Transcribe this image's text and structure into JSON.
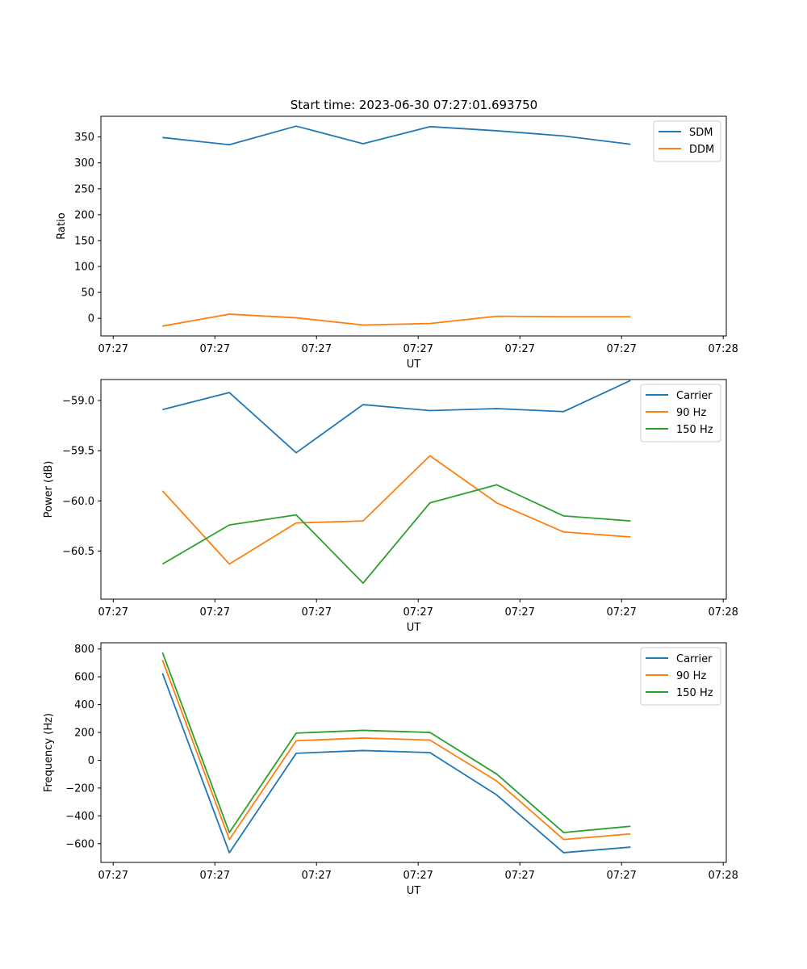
{
  "title": "Start time: 2023-06-30 07:27:01.693750",
  "colors": {
    "blue": "#1f77b4",
    "orange": "#ff7f0e",
    "green": "#2ca02c"
  },
  "chart_data": [
    {
      "type": "line",
      "ylabel": "Ratio",
      "xlabel": "UT",
      "x_tick_labels": [
        "07:27",
        "07:27",
        "07:27",
        "07:27",
        "07:27",
        "07:27",
        "07:28"
      ],
      "x_ticks": [
        -0.15,
        1.5,
        3.15,
        4.8,
        6.45,
        8.1,
        9.75
      ],
      "xlim": [
        -0.35,
        9.8
      ],
      "x": [
        0.65,
        1.735,
        2.82,
        3.905,
        4.99,
        6.075,
        7.16,
        8.245
      ],
      "ylim": [
        -34,
        390
      ],
      "y_ticks": [
        0,
        50,
        100,
        150,
        200,
        250,
        300,
        350
      ],
      "legend_location": "top-right",
      "series": [
        {
          "name": "SDM",
          "color": "#1f77b4",
          "values": [
            349,
            335,
            371,
            337,
            370,
            362,
            352,
            336
          ]
        },
        {
          "name": "DDM",
          "color": "#ff7f0e",
          "values": [
            -15,
            8,
            1,
            -13,
            -10,
            4,
            3,
            3
          ]
        }
      ]
    },
    {
      "type": "line",
      "ylabel": "Power (dB)",
      "xlabel": "UT",
      "x_tick_labels": [
        "07:27",
        "07:27",
        "07:27",
        "07:27",
        "07:27",
        "07:27",
        "07:28"
      ],
      "x_ticks": [
        -0.15,
        1.5,
        3.15,
        4.8,
        6.45,
        8.1,
        9.75
      ],
      "xlim": [
        -0.35,
        9.8
      ],
      "x": [
        0.65,
        1.735,
        2.82,
        3.905,
        4.99,
        6.075,
        7.16,
        8.245
      ],
      "ylim": [
        -60.98,
        -58.79
      ],
      "y_ticks": [
        -60.5,
        -60.0,
        -59.5,
        -59.0
      ],
      "y_tick_labels": [
        "−60.5",
        "−60.0",
        "−59.5",
        "−59.0"
      ],
      "legend_location": "top-right",
      "series": [
        {
          "name": "Carrier",
          "color": "#1f77b4",
          "values": [
            -59.09,
            -58.92,
            -59.52,
            -59.04,
            -59.1,
            -59.08,
            -59.11,
            -58.8
          ]
        },
        {
          "name": "90 Hz",
          "color": "#ff7f0e",
          "values": [
            -59.9,
            -60.63,
            -60.22,
            -60.2,
            -59.55,
            -60.02,
            -60.31,
            -60.36
          ]
        },
        {
          "name": "150 Hz",
          "color": "#2ca02c",
          "values": [
            -60.63,
            -60.24,
            -60.14,
            -60.82,
            -60.02,
            -59.84,
            -60.15,
            -60.2
          ]
        }
      ]
    },
    {
      "type": "line",
      "ylabel": "Frequency (Hz)",
      "xlabel": "UT",
      "x_tick_labels": [
        "07:27",
        "07:27",
        "07:27",
        "07:27",
        "07:27",
        "07:27",
        "07:28"
      ],
      "x_ticks": [
        -0.15,
        1.5,
        3.15,
        4.8,
        6.45,
        8.1,
        9.75
      ],
      "xlim": [
        -0.35,
        9.8
      ],
      "x": [
        0.65,
        1.735,
        2.82,
        3.905,
        4.99,
        6.075,
        7.16,
        8.245
      ],
      "ylim": [
        -735,
        845
      ],
      "y_ticks": [
        -600,
        -400,
        -200,
        0,
        200,
        400,
        600,
        800
      ],
      "y_tick_labels": [
        "−600",
        "−400",
        "−200",
        "0",
        "200",
        "400",
        "600",
        "800"
      ],
      "legend_location": "top-right",
      "series": [
        {
          "name": "Carrier",
          "color": "#1f77b4",
          "values": [
            625,
            -665,
            50,
            70,
            55,
            -250,
            -665,
            -625
          ]
        },
        {
          "name": "90 Hz",
          "color": "#ff7f0e",
          "values": [
            720,
            -570,
            140,
            160,
            145,
            -150,
            -570,
            -530
          ]
        },
        {
          "name": "150 Hz",
          "color": "#2ca02c",
          "values": [
            775,
            -520,
            195,
            215,
            200,
            -100,
            -520,
            -475
          ]
        }
      ]
    }
  ]
}
